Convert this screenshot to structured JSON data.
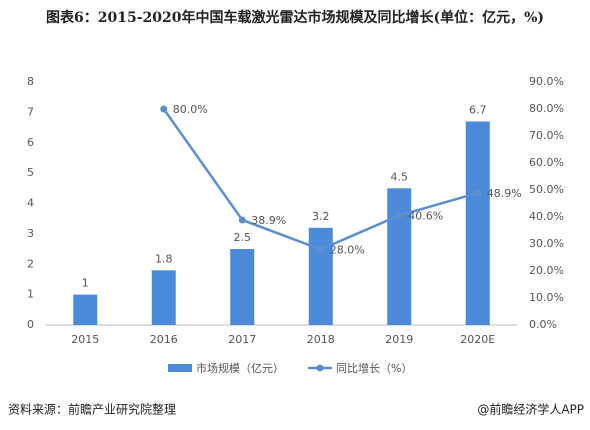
{
  "chart_data": {
    "type": "bar",
    "title": "图表6：2015-2020年中国车载激光雷达市场规模及同比增长(单位：亿元，%)",
    "categories": [
      "2015",
      "2016",
      "2017",
      "2018",
      "2019",
      "2020E"
    ],
    "series": [
      {
        "name": "市场规模（亿元）",
        "type": "bar",
        "color": "#4a8ad8",
        "values": [
          1,
          1.8,
          2.5,
          3.2,
          4.5,
          6.7
        ]
      },
      {
        "name": "同比增长（%）",
        "type": "line",
        "axis": "y2",
        "color": "#5b8fd0",
        "values": [
          null,
          80.0,
          38.9,
          28.0,
          40.6,
          48.9
        ],
        "value_labels": [
          null,
          "80.0%",
          "38.9%",
          "28.0%",
          "40.6%",
          "48.9%"
        ]
      }
    ],
    "ylim": [
      0,
      8
    ],
    "yticks": [
      0,
      1,
      2,
      3,
      4,
      5,
      6,
      7,
      8
    ],
    "y2lim": [
      0,
      90
    ],
    "y2ticks": [
      {
        "value": 0,
        "label": "0.0%"
      },
      {
        "value": 10,
        "label": "10.0%"
      },
      {
        "value": 20,
        "label": "20.0%"
      },
      {
        "value": 30,
        "label": "30.0%"
      },
      {
        "value": 40,
        "label": "40.0%"
      },
      {
        "value": 50,
        "label": "50.0%"
      },
      {
        "value": 60,
        "label": "60.0%"
      },
      {
        "value": 70,
        "label": "70.0%"
      },
      {
        "value": 80,
        "label": "80.0%"
      },
      {
        "value": 90,
        "label": "90.0%"
      }
    ],
    "grid": false,
    "source": "资料来源：前瞻产业研究院整理",
    "credit": "@前瞻经济学人APP"
  }
}
